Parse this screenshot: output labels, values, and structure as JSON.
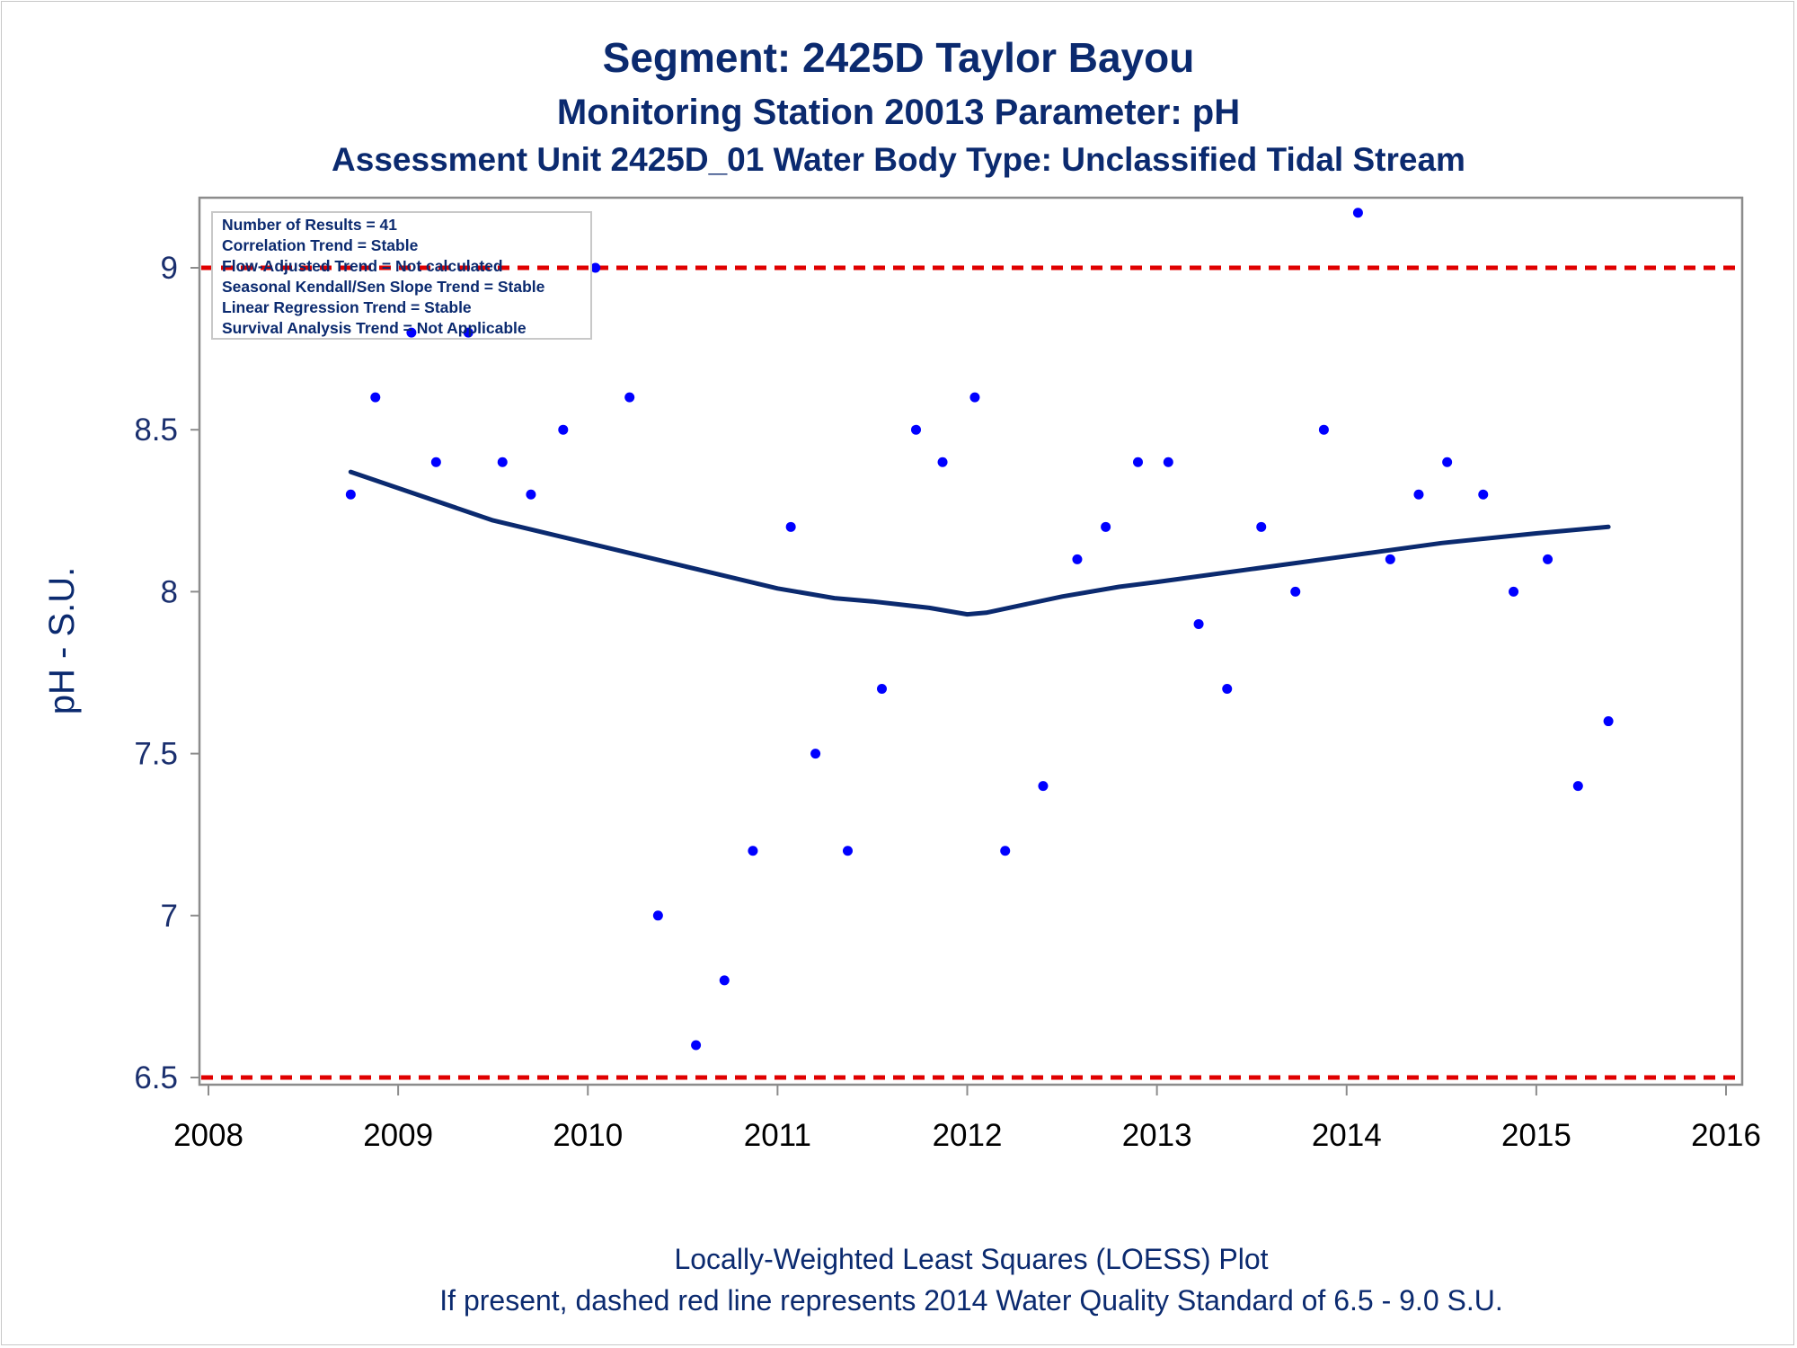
{
  "titles": {
    "line1": "Segment: 2425D  Taylor Bayou",
    "line2": "Monitoring Station 20013 Parameter: pH",
    "line3": "Assessment Unit 2425D_01   Water Body Type: Unclassified Tidal Stream"
  },
  "footnotes": {
    "line1": "Locally-Weighted Least Squares (LOESS) Plot",
    "line2": "If present, dashed red line represents 2014 Water Quality Standard of 6.5 - 9.0 S.U."
  },
  "stats_box": [
    "Number of Results = 41",
    "Correlation Trend = Stable",
    "Flow-Adjusted Trend = Not calculated",
    "Seasonal Kendall/Sen Slope Trend = Stable",
    "Linear Regression Trend = Stable",
    "Survival Analysis Trend = Not Applicable"
  ],
  "colors": {
    "text": "#0b2a6f",
    "points": "#0000ff",
    "loess": "#0b2a6f",
    "standard_line": "#e00000",
    "axis": "#8c8c8c"
  },
  "chart_data": {
    "type": "scatter",
    "ylabel": "pH - S.U.",
    "xlabel": "",
    "xlim": [
      2008,
      2016
    ],
    "ylim": [
      6.5,
      9.2
    ],
    "x_ticks": [
      "2008",
      "2009",
      "2010",
      "2011",
      "2012",
      "2013",
      "2014",
      "2015",
      "2016"
    ],
    "y_ticks": [
      "6.5",
      "7",
      "7.5",
      "8",
      "8.5",
      "9"
    ],
    "y_tick_values": [
      6.5,
      7,
      7.5,
      8,
      8.5,
      9
    ],
    "grid": false,
    "reference_lines": [
      {
        "y": 9.0,
        "style": "dashed",
        "color": "#e00000"
      },
      {
        "y": 6.5,
        "style": "dashed",
        "color": "#e00000"
      }
    ],
    "points": [
      {
        "x": 2008.75,
        "y": 8.3
      },
      {
        "x": 2008.88,
        "y": 8.6
      },
      {
        "x": 2009.07,
        "y": 8.8
      },
      {
        "x": 2009.2,
        "y": 8.4
      },
      {
        "x": 2009.37,
        "y": 8.8
      },
      {
        "x": 2009.55,
        "y": 8.4
      },
      {
        "x": 2009.7,
        "y": 8.3
      },
      {
        "x": 2009.87,
        "y": 8.5
      },
      {
        "x": 2010.04,
        "y": 9.0
      },
      {
        "x": 2010.22,
        "y": 8.6
      },
      {
        "x": 2010.37,
        "y": 7.0
      },
      {
        "x": 2010.57,
        "y": 6.6
      },
      {
        "x": 2010.72,
        "y": 6.8
      },
      {
        "x": 2010.87,
        "y": 7.2
      },
      {
        "x": 2011.07,
        "y": 8.2
      },
      {
        "x": 2011.2,
        "y": 7.5
      },
      {
        "x": 2011.37,
        "y": 7.2
      },
      {
        "x": 2011.55,
        "y": 7.7
      },
      {
        "x": 2011.73,
        "y": 8.5
      },
      {
        "x": 2011.87,
        "y": 8.4
      },
      {
        "x": 2012.04,
        "y": 8.6
      },
      {
        "x": 2012.2,
        "y": 7.2
      },
      {
        "x": 2012.4,
        "y": 7.4
      },
      {
        "x": 2012.58,
        "y": 8.1
      },
      {
        "x": 2012.73,
        "y": 8.2
      },
      {
        "x": 2012.9,
        "y": 8.4
      },
      {
        "x": 2013.06,
        "y": 8.4
      },
      {
        "x": 2013.22,
        "y": 7.9
      },
      {
        "x": 2013.37,
        "y": 7.7
      },
      {
        "x": 2013.55,
        "y": 8.2
      },
      {
        "x": 2013.73,
        "y": 8.0
      },
      {
        "x": 2013.88,
        "y": 8.5
      },
      {
        "x": 2014.06,
        "y": 9.17
      },
      {
        "x": 2014.23,
        "y": 8.1
      },
      {
        "x": 2014.38,
        "y": 8.3
      },
      {
        "x": 2014.53,
        "y": 8.4
      },
      {
        "x": 2014.72,
        "y": 8.3
      },
      {
        "x": 2014.88,
        "y": 8.0
      },
      {
        "x": 2015.06,
        "y": 8.1
      },
      {
        "x": 2015.22,
        "y": 7.4
      },
      {
        "x": 2015.38,
        "y": 7.6
      }
    ],
    "loess": [
      {
        "x": 2008.75,
        "y": 8.37
      },
      {
        "x": 2009.0,
        "y": 8.32
      },
      {
        "x": 2009.5,
        "y": 8.22
      },
      {
        "x": 2010.0,
        "y": 8.15
      },
      {
        "x": 2010.5,
        "y": 8.08
      },
      {
        "x": 2011.0,
        "y": 8.01
      },
      {
        "x": 2011.3,
        "y": 7.98
      },
      {
        "x": 2011.5,
        "y": 7.97
      },
      {
        "x": 2011.8,
        "y": 7.95
      },
      {
        "x": 2012.0,
        "y": 7.93
      },
      {
        "x": 2012.1,
        "y": 7.935
      },
      {
        "x": 2012.3,
        "y": 7.96
      },
      {
        "x": 2012.5,
        "y": 7.985
      },
      {
        "x": 2012.8,
        "y": 8.015
      },
      {
        "x": 2013.0,
        "y": 8.03
      },
      {
        "x": 2013.5,
        "y": 8.07
      },
      {
        "x": 2014.0,
        "y": 8.11
      },
      {
        "x": 2014.5,
        "y": 8.15
      },
      {
        "x": 2015.0,
        "y": 8.18
      },
      {
        "x": 2015.38,
        "y": 8.2
      }
    ]
  }
}
